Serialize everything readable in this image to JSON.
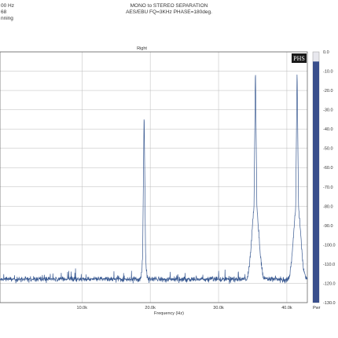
{
  "header": {
    "left_lines": [
      "00 Hz",
      "68",
      "nning"
    ],
    "center_lines": [
      "MONO to STEREO SEPARATION",
      "AES/EBU FQ=3KHz PHASE=180deg."
    ]
  },
  "badge": {
    "text": "PHS"
  },
  "colors": {
    "trace": "#3a5a92",
    "meter": "#3a4f8c",
    "grid": "#bbbbbb",
    "frame": "#555555"
  },
  "chart_data": {
    "type": "line",
    "title": "Right",
    "xlabel": "Frequency (Hz)",
    "ylabel": "",
    "xlim": [
      -2000,
      43000
    ],
    "ylim": [
      -130,
      0
    ],
    "x_ticks": [
      {
        "v": 10000,
        "label": "10.0k"
      },
      {
        "v": 20000,
        "label": "20.0k"
      },
      {
        "v": 30000,
        "label": "30.0k"
      },
      {
        "v": 40000,
        "label": "40.0k"
      }
    ],
    "y_ticks": [
      {
        "v": 0,
        "label": "0.0"
      },
      {
        "v": -10,
        "label": "-10.0"
      },
      {
        "v": -20,
        "label": "-20.0"
      },
      {
        "v": -30,
        "label": "-30.0"
      },
      {
        "v": -40,
        "label": "-40.0"
      },
      {
        "v": -50,
        "label": "-50.0"
      },
      {
        "v": -60,
        "label": "-60.0"
      },
      {
        "v": -70,
        "label": "-70.0"
      },
      {
        "v": -80,
        "label": "-80.0"
      },
      {
        "v": -90,
        "label": "-90.0"
      },
      {
        "v": -100,
        "label": "-100.0"
      },
      {
        "v": -110,
        "label": "-110.0"
      },
      {
        "v": -120,
        "label": "-120.0"
      },
      {
        "v": -130,
        "label": "-130.0"
      }
    ],
    "noise_floor": -119,
    "peaks": [
      {
        "x": 19100,
        "y": -30,
        "skirt": "narrow"
      },
      {
        "x": 35400,
        "y": -7,
        "skirt": "wide"
      },
      {
        "x": 41500,
        "y": -8,
        "skirt": "wide"
      }
    ],
    "meter": {
      "label": "Pwr",
      "level": -5
    }
  }
}
